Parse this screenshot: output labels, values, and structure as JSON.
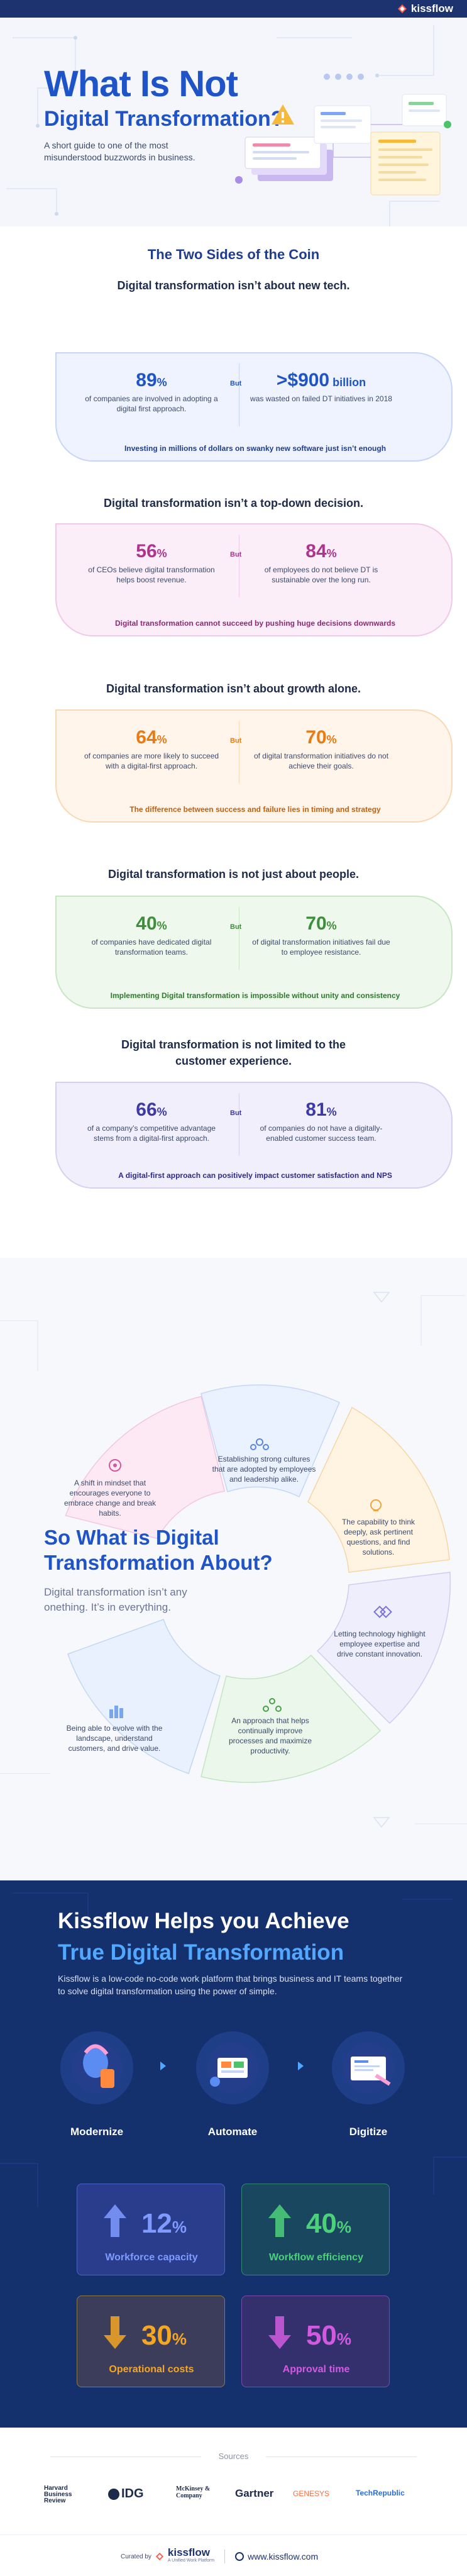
{
  "brand": {
    "name": "kissflow"
  },
  "hero": {
    "title_line1": "What Is Not",
    "title_line2": "Digital Transformation?",
    "subtitle": "A short guide to one of the most misunderstood buzzwords in business."
  },
  "two_sides": {
    "title": "The Two Sides of the Coin",
    "vs_label": "But",
    "myths": [
      {
        "heading": "Digital transformation isn’t about new tech.",
        "left_value": "89",
        "left_unit": "%",
        "left_desc": "of companies are involved in adopting a digital first approach.",
        "right_value": ">$900",
        "right_unit": " billion",
        "right_desc": "was wasted on failed DT initiatives in 2018",
        "note": "Investing in millions of dollars on swanky new software just isn’t enough"
      },
      {
        "heading": "Digital transformation isn’t a top-down decision.",
        "left_value": "56",
        "left_unit": "%",
        "left_desc": "of CEOs believe digital transformation helps boost revenue.",
        "right_value": "84",
        "right_unit": "%",
        "right_desc": "of employees do not believe DT is sustainable over the long run.",
        "note": "Digital transformation cannot succeed by pushing huge decisions downwards"
      },
      {
        "heading": "Digital transformation isn’t about growth alone.",
        "left_value": "64",
        "left_unit": "%",
        "left_desc": "of companies are more likely to succeed with a digital-first approach.",
        "right_value": "70",
        "right_unit": "%",
        "right_desc": "of digital transformation initiatives do not achieve their goals.",
        "note": "The difference between success and failure lies in timing and strategy"
      },
      {
        "heading": "Digital transformation is not just about people.",
        "left_value": "40",
        "left_unit": "%",
        "left_desc": "of companies have dedicated digital transformation teams.",
        "right_value": "70",
        "right_unit": "%",
        "right_desc": "of digital transformation initiatives fail due to employee resistance.",
        "note": "Implementing Digital transformation is impossible without unity and consistency"
      },
      {
        "heading": "Digital transformation is not limited to the customer experience.",
        "left_value": "66",
        "left_unit": "%",
        "left_desc": "of a company’s competitive advantage stems from a digital-first approach.",
        "right_value": "81",
        "right_unit": "%",
        "right_desc": "of companies do not have a digitally-enabled customer success team.",
        "note": "A digital-first approach can positively impact customer satisfaction and NPS"
      }
    ]
  },
  "about": {
    "title": "So What is Digital Transformation About?",
    "subtitle": "Digital transformation isn’t any onething. It’s in everything.",
    "segments": [
      "A shift in mindset that encourages everyone to embrace change and break habits.",
      "Establishing strong cultures that are adopted by employees and leadership alike.",
      "The capability to think deeply, ask pertinent questions, and find solutions.",
      "Letting technology highlight employee expertise and drive constant innovation.",
      "An approach that helps continually improve processes and maximize productivity.",
      "Being able to evolve with the landscape, understand customers, and drive value."
    ]
  },
  "kissflow": {
    "title_line1": "Kissflow Helps you Achieve",
    "title_line2": "True Digital Transformation",
    "subtitle": "Kissflow is a low-code no-code work platform that brings business and IT teams together to solve digital transformation using the power of simple.",
    "steps": [
      "Modernize",
      "Automate",
      "Digitize"
    ],
    "metrics": [
      {
        "value": "12",
        "unit": "%",
        "label": "Workforce capacity",
        "direction": "up"
      },
      {
        "value": "40",
        "unit": "%",
        "label": "Workflow efficiency",
        "direction": "up"
      },
      {
        "value": "30",
        "unit": "%",
        "label": "Operational costs",
        "direction": "down"
      },
      {
        "value": "50",
        "unit": "%",
        "label": "Approval time",
        "direction": "down"
      }
    ]
  },
  "sources": {
    "title": "Sources",
    "logos": [
      "Harvard Business Review",
      "IDG",
      "McKinsey & Company",
      "Gartner",
      "GENESYS",
      "TechRepublic"
    ]
  },
  "footer": {
    "curated_by": "Curated by",
    "brand": "kissflow",
    "brand_tag": "A Unified Work Platform",
    "website": "www.kissflow.com"
  }
}
